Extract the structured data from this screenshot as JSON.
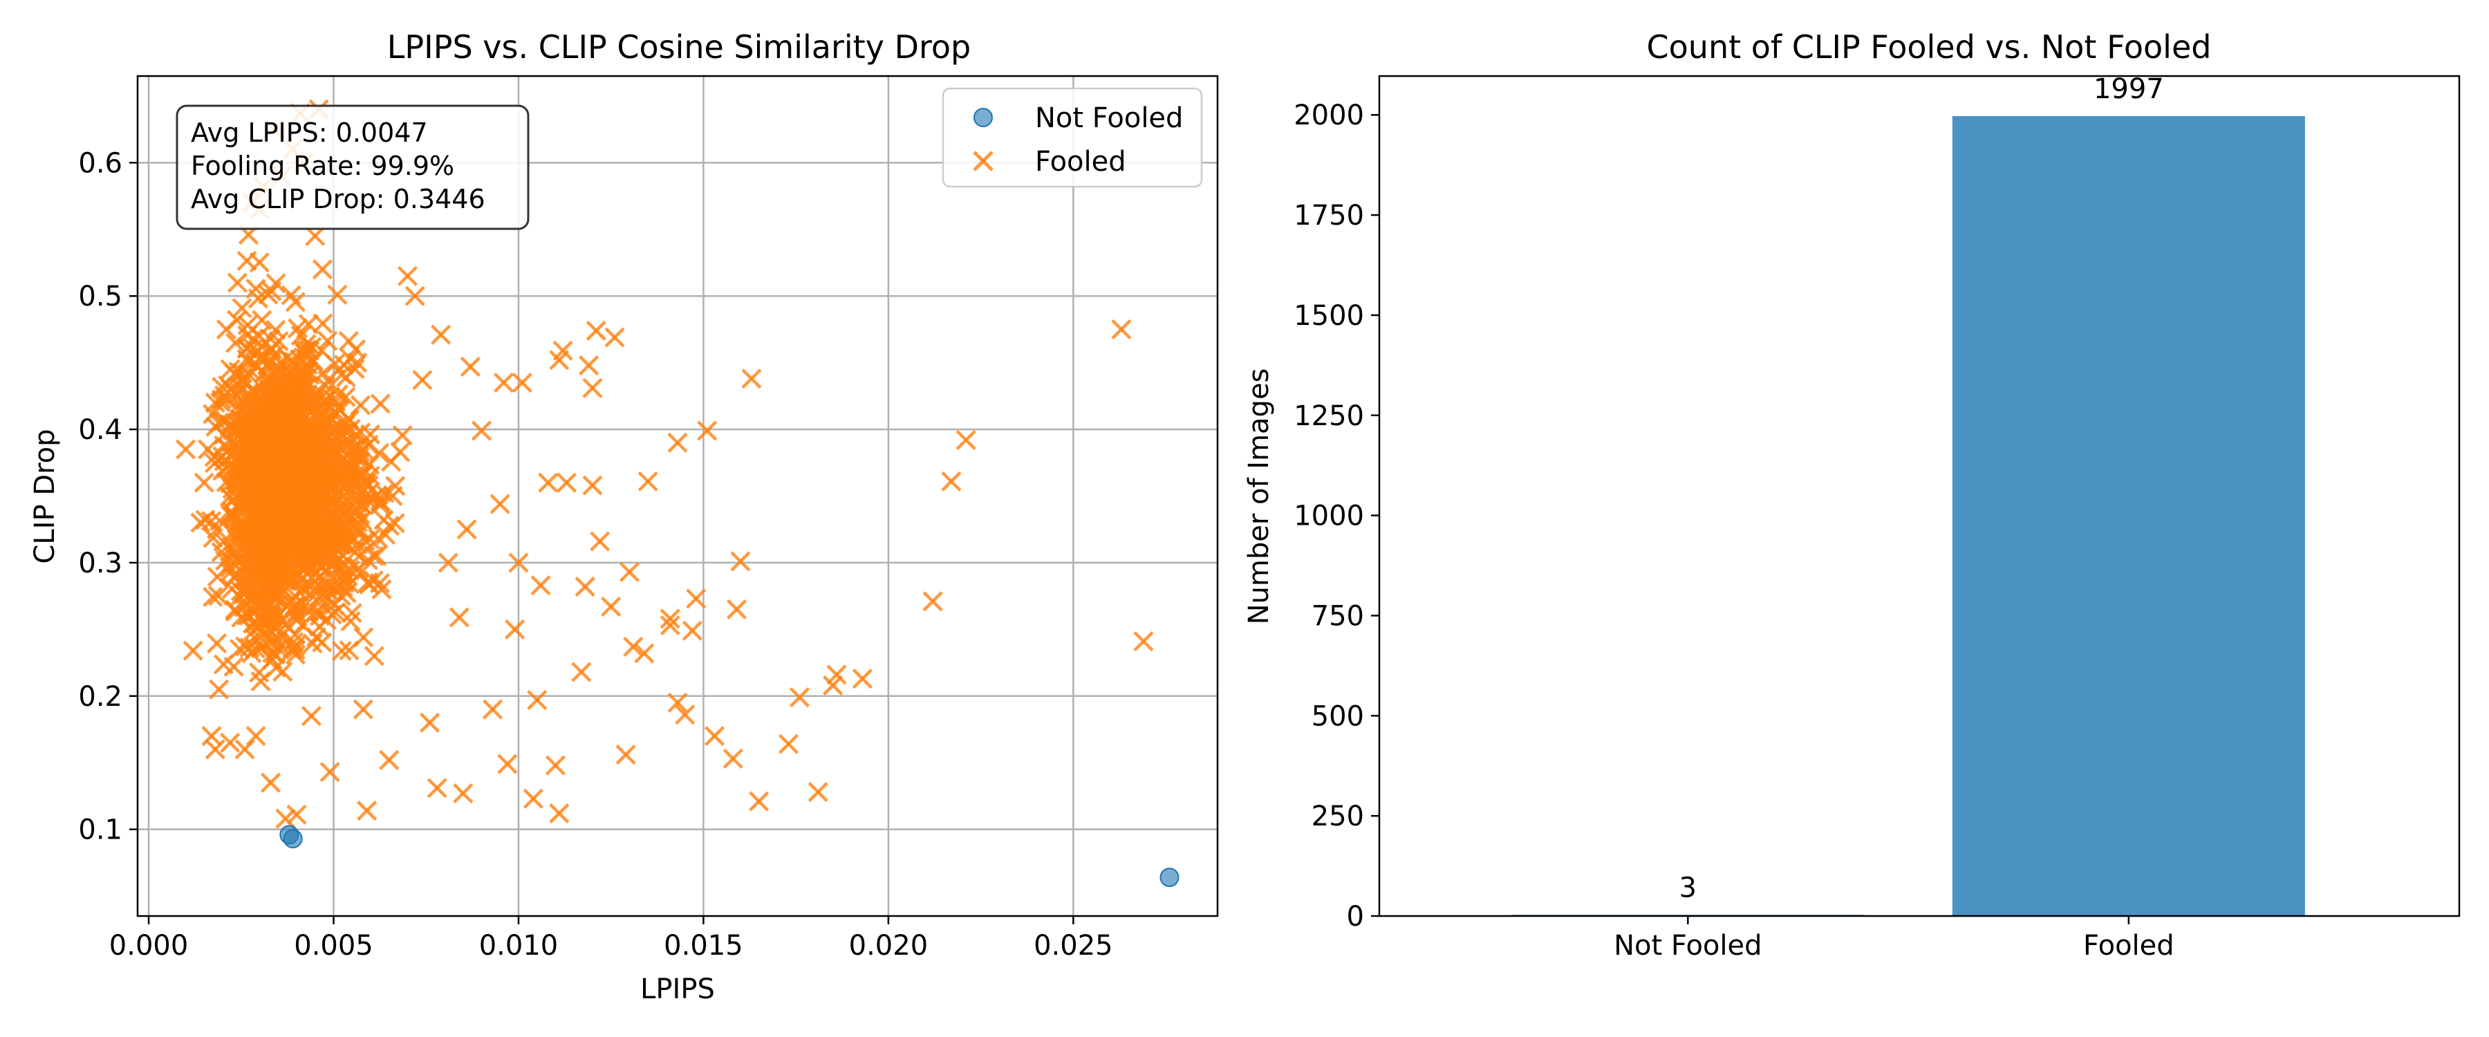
{
  "chart_data": [
    {
      "type": "scatter",
      "title": "LPIPS vs. CLIP Cosine Similarity Drop",
      "xlabel": "LPIPS",
      "ylabel": "CLIP Drop",
      "xlim": [
        -0.0003,
        0.0289
      ],
      "ylim": [
        0.035,
        0.665
      ],
      "xticks": [
        0.0,
        0.005,
        0.01,
        0.015,
        0.02,
        0.025
      ],
      "xtick_labels": [
        "0.000",
        "0.005",
        "0.010",
        "0.015",
        "0.020",
        "0.025"
      ],
      "yticks": [
        0.1,
        0.2,
        0.3,
        0.4,
        0.5,
        0.6
      ],
      "ytick_labels": [
        "0.1",
        "0.2",
        "0.3",
        "0.4",
        "0.5",
        "0.6"
      ],
      "grid": true,
      "legend_position": "top-right",
      "stats_box": {
        "position": "top-left",
        "lines": [
          "Avg LPIPS: 0.0047",
          "Fooling Rate: 99.9%",
          "Avg CLIP Drop: 0.3446"
        ]
      },
      "series": [
        {
          "name": "Not Fooled",
          "marker": "circle",
          "color": "#1f77b4",
          "points": [
            [
              0.0038,
              0.096
            ],
            [
              0.0039,
              0.093
            ],
            [
              0.0276,
              0.064
            ]
          ]
        },
        {
          "name": "Fooled",
          "marker": "x",
          "color": "#ff7f0e",
          "points": [
            [
              0.0263,
              0.475
            ],
            [
              0.0221,
              0.392
            ],
            [
              0.0217,
              0.361
            ],
            [
              0.0212,
              0.271
            ],
            [
              0.0269,
              0.241
            ],
            [
              0.0193,
              0.213
            ],
            [
              0.0186,
              0.216
            ],
            [
              0.0185,
              0.208
            ],
            [
              0.0181,
              0.128
            ],
            [
              0.0176,
              0.199
            ],
            [
              0.0173,
              0.164
            ],
            [
              0.0165,
              0.121
            ],
            [
              0.0163,
              0.438
            ],
            [
              0.016,
              0.301
            ],
            [
              0.0159,
              0.265
            ],
            [
              0.0158,
              0.153
            ],
            [
              0.0153,
              0.17
            ],
            [
              0.0151,
              0.399
            ],
            [
              0.0148,
              0.273
            ],
            [
              0.0147,
              0.249
            ],
            [
              0.0145,
              0.186
            ],
            [
              0.0143,
              0.39
            ],
            [
              0.0143,
              0.195
            ],
            [
              0.0141,
              0.258
            ],
            [
              0.0141,
              0.253
            ],
            [
              0.0135,
              0.361
            ],
            [
              0.0134,
              0.232
            ],
            [
              0.0131,
              0.237
            ],
            [
              0.013,
              0.293
            ],
            [
              0.0129,
              0.156
            ],
            [
              0.0126,
              0.469
            ],
            [
              0.0125,
              0.267
            ],
            [
              0.0121,
              0.474
            ],
            [
              0.012,
              0.431
            ],
            [
              0.012,
              0.358
            ],
            [
              0.0122,
              0.316
            ],
            [
              0.0119,
              0.448
            ],
            [
              0.0118,
              0.282
            ],
            [
              0.0117,
              0.218
            ],
            [
              0.0113,
              0.36
            ],
            [
              0.0112,
              0.459
            ],
            [
              0.0111,
              0.452
            ],
            [
              0.011,
              0.148
            ],
            [
              0.0111,
              0.112
            ],
            [
              0.0108,
              0.36
            ],
            [
              0.0106,
              0.283
            ],
            [
              0.0105,
              0.197
            ],
            [
              0.0104,
              0.123
            ],
            [
              0.0101,
              0.435
            ],
            [
              0.01,
              0.3
            ],
            [
              0.0099,
              0.25
            ],
            [
              0.0097,
              0.149
            ],
            [
              0.0096,
              0.435
            ],
            [
              0.0095,
              0.344
            ],
            [
              0.0093,
              0.19
            ],
            [
              0.009,
              0.399
            ],
            [
              0.0087,
              0.447
            ],
            [
              0.0086,
              0.325
            ],
            [
              0.0085,
              0.127
            ],
            [
              0.0084,
              0.259
            ],
            [
              0.0081,
              0.3
            ],
            [
              0.0079,
              0.471
            ],
            [
              0.0078,
              0.131
            ],
            [
              0.0076,
              0.18
            ],
            [
              0.0074,
              0.437
            ],
            [
              0.0072,
              0.5
            ],
            [
              0.007,
              0.515
            ],
            [
              0.0068,
              0.383
            ],
            [
              0.0066,
              0.35
            ],
            [
              0.0065,
              0.152
            ],
            [
              0.0063,
              0.28
            ],
            [
              0.0061,
              0.23
            ],
            [
              0.0059,
              0.114
            ],
            [
              0.0058,
              0.19
            ],
            [
              0.0056,
              0.46
            ],
            [
              0.0054,
              0.408
            ],
            [
              0.0052,
              0.275
            ],
            [
              0.0051,
              0.501
            ],
            [
              0.0049,
              0.143
            ],
            [
              0.0047,
              0.52
            ],
            [
              0.0045,
              0.545
            ],
            [
              0.0044,
              0.185
            ],
            [
              0.0042,
              0.6
            ],
            [
              0.0041,
              0.637
            ],
            [
              0.004,
              0.111
            ],
            [
              0.0039,
              0.61
            ],
            [
              0.0037,
              0.108
            ],
            [
              0.0036,
              0.59
            ],
            [
              0.0034,
              0.625
            ],
            [
              0.0033,
              0.135
            ],
            [
              0.0031,
              0.582
            ],
            [
              0.003,
              0.565
            ],
            [
              0.0029,
              0.17
            ],
            [
              0.0027,
              0.546
            ],
            [
              0.0026,
              0.16
            ],
            [
              0.0024,
              0.51
            ],
            [
              0.0023,
              0.222
            ],
            [
              0.0021,
              0.475
            ],
            [
              0.0019,
              0.205
            ],
            [
              0.0018,
              0.42
            ],
            [
              0.0016,
              0.385
            ],
            [
              0.0015,
              0.36
            ],
            [
              0.0014,
              0.33
            ],
            [
              0.0012,
              0.234
            ],
            [
              0.001,
              0.385
            ],
            [
              0.0017,
              0.17
            ],
            [
              0.0018,
              0.16
            ],
            [
              0.0022,
              0.165
            ],
            [
              0.0028,
              0.57
            ],
            [
              0.0046,
              0.64
            ]
          ],
          "dense_cloud_note": "remaining fooled points are densely clustered around LPIPS 0.0015–0.0075, CLIP Drop 0.16–0.57"
        }
      ]
    },
    {
      "type": "bar",
      "title": "Count of CLIP Fooled vs. Not Fooled",
      "xlabel": "",
      "ylabel": "Number of Images",
      "categories": [
        "Not Fooled",
        "Fooled"
      ],
      "values": [
        3,
        1997
      ],
      "value_labels": [
        "3",
        "1997"
      ],
      "ylim": [
        0,
        2097
      ],
      "yticks": [
        0,
        250,
        500,
        750,
        1000,
        1250,
        1500,
        1750,
        2000
      ],
      "ytick_labels": [
        "0",
        "250",
        "500",
        "750",
        "1000",
        "1250",
        "1500",
        "1750",
        "2000"
      ],
      "bar_color": "#1f77b4",
      "grid": false
    }
  ],
  "colors": {
    "not_fooled": "#1f77b4",
    "fooled": "#ff7f0e",
    "grid": "#b0b0b0"
  }
}
